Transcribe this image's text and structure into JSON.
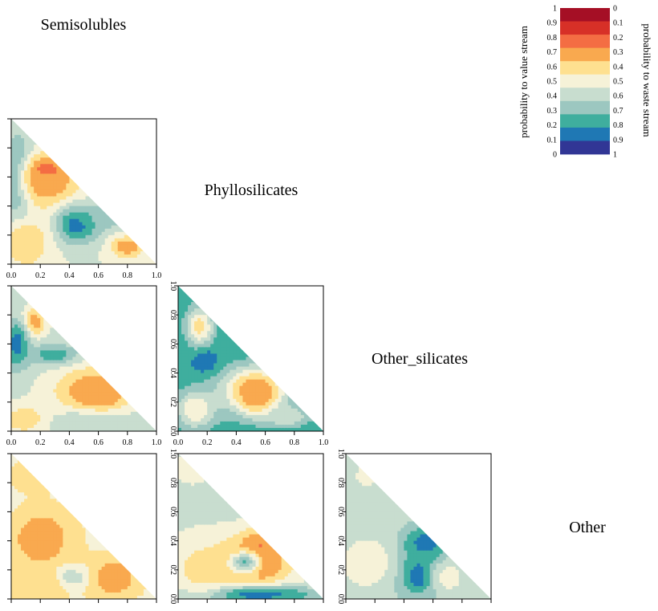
{
  "chart_data": {
    "type": "heatmap",
    "title": "",
    "variables": [
      "Semisolubles",
      "Phyllosilicates",
      "Other_silicates",
      "Other"
    ],
    "x_ticks": [
      "0.0",
      "0.2",
      "0.4",
      "0.6",
      "0.8",
      "1.0"
    ],
    "y_ticks": [
      "0.0",
      "0.2",
      "0.4",
      "0.6",
      "0.8",
      "1.0"
    ],
    "xlim": [
      0,
      1
    ],
    "ylim": [
      0,
      1
    ],
    "colorbar": {
      "left_label": "probability to value stream",
      "right_label": "probability to waste stream",
      "left_ticks": [
        "1",
        "0.9",
        "0.8",
        "0.7",
        "0.6",
        "0.5",
        "0.4",
        "0.3",
        "0.2",
        "0.1",
        "0"
      ],
      "right_ticks": [
        "0",
        "0.1",
        "0.2",
        "0.3",
        "0.4",
        "0.5",
        "0.6",
        "0.7",
        "0.8",
        "0.9",
        "1"
      ],
      "colors": [
        "#a50f25",
        "#d73027",
        "#f46d43",
        "#f9a94f",
        "#fee090",
        "#f6f2d8",
        "#c8ddcf",
        "#9cc7c0",
        "#3fae9e",
        "#1f78b4",
        "#313695"
      ]
    },
    "panels": [
      {
        "name": "panel-phyllosilicates-vs-semisolubles",
        "row": 0,
        "col": 0,
        "x_ticks_shown": true,
        "y_ticks_shown": false,
        "background": 0.45,
        "blobs": [
          {
            "x": 0.05,
            "y": 0.55,
            "sx": 0.07,
            "sy": 0.22,
            "v": 0.1
          },
          {
            "x": 0.25,
            "y": 0.63,
            "sx": 0.09,
            "sy": 0.07,
            "v": 0.95
          },
          {
            "x": 0.25,
            "y": 0.55,
            "sx": 0.15,
            "sy": 0.13,
            "v": 0.72
          },
          {
            "x": 0.45,
            "y": 0.27,
            "sx": 0.11,
            "sy": 0.09,
            "v": 0.08
          },
          {
            "x": 0.8,
            "y": 0.12,
            "sx": 0.08,
            "sy": 0.05,
            "v": 0.75
          },
          {
            "x": 0.1,
            "y": 0.15,
            "sx": 0.12,
            "sy": 0.13,
            "v": 0.65
          },
          {
            "x": 0.65,
            "y": 0.32,
            "sx": 0.12,
            "sy": 0.05,
            "v": 0.25
          }
        ]
      },
      {
        "name": "panel-other-silicates-vs-semisolubles",
        "row": 1,
        "col": 0,
        "x_ticks_shown": true,
        "y_ticks_shown": false,
        "background": 0.42,
        "blobs": [
          {
            "x": 0.15,
            "y": 0.75,
            "sx": 0.06,
            "sy": 0.07,
            "v": 0.75
          },
          {
            "x": 0.04,
            "y": 0.6,
            "sx": 0.06,
            "sy": 0.12,
            "v": 0.1
          },
          {
            "x": 0.3,
            "y": 0.52,
            "sx": 0.12,
            "sy": 0.05,
            "v": 0.15
          },
          {
            "x": 0.6,
            "y": 0.25,
            "sx": 0.1,
            "sy": 0.08,
            "v": 0.95
          },
          {
            "x": 0.55,
            "y": 0.28,
            "sx": 0.2,
            "sy": 0.12,
            "v": 0.7
          },
          {
            "x": 0.1,
            "y": 0.08,
            "sx": 0.12,
            "sy": 0.07,
            "v": 0.65
          },
          {
            "x": 0.55,
            "y": 0.06,
            "sx": 0.2,
            "sy": 0.06,
            "v": 0.35
          }
        ]
      },
      {
        "name": "panel-other-silicates-vs-phyllosilicates",
        "row": 1,
        "col": 1,
        "x_ticks_shown": true,
        "y_ticks_shown": true,
        "background": 0.15,
        "blobs": [
          {
            "x": 0.15,
            "y": 0.72,
            "sx": 0.07,
            "sy": 0.1,
            "v": 0.6
          },
          {
            "x": 0.2,
            "y": 0.47,
            "sx": 0.06,
            "sy": 0.06,
            "v": 0.05
          },
          {
            "x": 0.55,
            "y": 0.25,
            "sx": 0.08,
            "sy": 0.08,
            "v": 0.95
          },
          {
            "x": 0.52,
            "y": 0.28,
            "sx": 0.17,
            "sy": 0.12,
            "v": 0.7
          },
          {
            "x": 0.12,
            "y": 0.15,
            "sx": 0.1,
            "sy": 0.1,
            "v": 0.55
          },
          {
            "x": 0.75,
            "y": 0.1,
            "sx": 0.12,
            "sy": 0.05,
            "v": 0.45
          }
        ]
      },
      {
        "name": "panel-other-vs-semisolubles",
        "row": 2,
        "col": 0,
        "x_ticks_shown": false,
        "y_ticks_shown": false,
        "background": 0.52,
        "blobs": [
          {
            "x": 0.2,
            "y": 0.42,
            "sx": 0.07,
            "sy": 0.07,
            "v": 0.95
          },
          {
            "x": 0.22,
            "y": 0.4,
            "sx": 0.15,
            "sy": 0.15,
            "v": 0.72
          },
          {
            "x": 0.15,
            "y": 0.85,
            "sx": 0.1,
            "sy": 0.07,
            "v": 0.65
          },
          {
            "x": 0.7,
            "y": 0.15,
            "sx": 0.07,
            "sy": 0.06,
            "v": 0.92
          },
          {
            "x": 0.7,
            "y": 0.15,
            "sx": 0.14,
            "sy": 0.1,
            "v": 0.68
          },
          {
            "x": 0.4,
            "y": 0.15,
            "sx": 0.08,
            "sy": 0.05,
            "v": 0.25
          },
          {
            "x": 0.2,
            "y": 0.1,
            "sx": 0.15,
            "sy": 0.1,
            "v": 0.62
          },
          {
            "x": 0.5,
            "y": 0.35,
            "sx": 0.08,
            "sy": 0.1,
            "v": 0.55
          }
        ]
      },
      {
        "name": "panel-other-vs-phyllosilicates",
        "row": 2,
        "col": 1,
        "x_ticks_shown": false,
        "y_ticks_shown": true,
        "background": 0.42,
        "blobs": [
          {
            "x": 0.55,
            "y": 0.3,
            "sx": 0.1,
            "sy": 0.1,
            "v": 0.95
          },
          {
            "x": 0.5,
            "y": 0.25,
            "sx": 0.22,
            "sy": 0.13,
            "v": 0.72
          },
          {
            "x": 0.45,
            "y": 0.25,
            "sx": 0.07,
            "sy": 0.05,
            "v": 0.2
          },
          {
            "x": 0.5,
            "y": 0.03,
            "sx": 0.35,
            "sy": 0.04,
            "v": 0.08
          },
          {
            "x": 0.15,
            "y": 0.2,
            "sx": 0.15,
            "sy": 0.15,
            "v": 0.58
          },
          {
            "x": 0.1,
            "y": 0.9,
            "sx": 0.1,
            "sy": 0.08,
            "v": 0.5
          }
        ]
      },
      {
        "name": "panel-other-vs-other-silicates",
        "row": 2,
        "col": 2,
        "x_ticks_shown": false,
        "y_ticks_shown": true,
        "background": 0.4,
        "blobs": [
          {
            "x": 0.55,
            "y": 0.38,
            "sx": 0.1,
            "sy": 0.08,
            "v": 0.05
          },
          {
            "x": 0.5,
            "y": 0.2,
            "sx": 0.12,
            "sy": 0.15,
            "v": 0.15
          },
          {
            "x": 0.5,
            "y": 0.15,
            "sx": 0.05,
            "sy": 0.05,
            "v": 0.05
          },
          {
            "x": 0.15,
            "y": 0.25,
            "sx": 0.13,
            "sy": 0.12,
            "v": 0.52
          },
          {
            "x": 0.7,
            "y": 0.15,
            "sx": 0.08,
            "sy": 0.08,
            "v": 0.5
          },
          {
            "x": 0.15,
            "y": 0.85,
            "sx": 0.08,
            "sy": 0.07,
            "v": 0.48
          }
        ]
      }
    ]
  }
}
